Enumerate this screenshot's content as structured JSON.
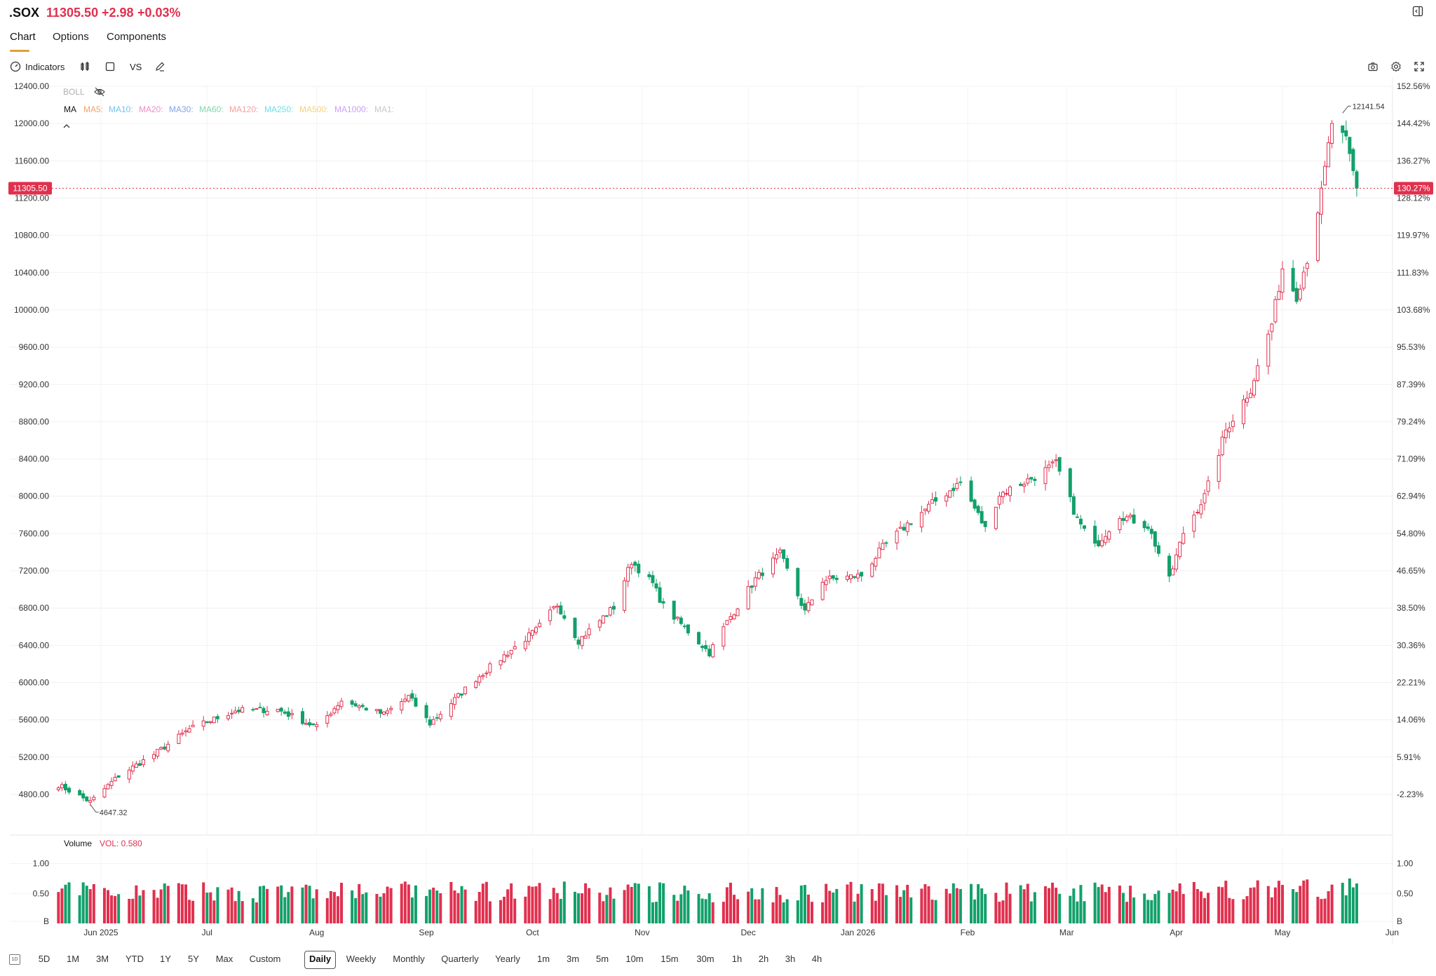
{
  "header": {
    "symbol": ".SOX",
    "price": "11305.50",
    "change": "+2.98",
    "change_pct": "+0.03%"
  },
  "tabs": [
    {
      "label": "Chart",
      "active": true
    },
    {
      "label": "Options"
    },
    {
      "label": "Components"
    }
  ],
  "toolbar": {
    "indicators_label": "Indicators",
    "vs_label": "VS"
  },
  "indicators": {
    "boll_label": "BOLL",
    "ma_label": "MA",
    "ma_items": [
      {
        "label": "MA5:",
        "color": "#f5a26b"
      },
      {
        "label": "MA10:",
        "color": "#6ec6f0"
      },
      {
        "label": "MA20:",
        "color": "#f08cc8"
      },
      {
        "label": "MA30:",
        "color": "#7fa6e8"
      },
      {
        "label": "MA60:",
        "color": "#7fd6b0"
      },
      {
        "label": "MA120:",
        "color": "#f5a0a0"
      },
      {
        "label": "MA250:",
        "color": "#6fe0e6"
      },
      {
        "label": "MA500:",
        "color": "#f3d27a"
      },
      {
        "label": "MA1000:",
        "color": "#c7a3f0"
      },
      {
        "label": "MA1:",
        "color": "#c8c8c8"
      }
    ],
    "volume_label": "Volume",
    "vol_value": "VOL: 0.580"
  },
  "colors": {
    "up": "#e0304e",
    "down": "#12a06a",
    "grid": "#f0f0f0",
    "axis_text": "#333333"
  },
  "chart_data": {
    "type": "candlestick",
    "y_ticks": [
      "12400.00",
      "12000.00",
      "11600.00",
      "11200.00",
      "10800.00",
      "10400.00",
      "10000.00",
      "9600.00",
      "9200.00",
      "8800.00",
      "8400.00",
      "8000.00",
      "7600.00",
      "7200.00",
      "6800.00",
      "6400.00",
      "6000.00",
      "5600.00",
      "5200.00",
      "4800.00"
    ],
    "pct_ticks": [
      "152.56%",
      "144.42%",
      "136.27%",
      "128.12%",
      "119.97%",
      "111.83%",
      "103.68%",
      "95.53%",
      "87.39%",
      "79.24%",
      "71.09%",
      "62.94%",
      "54.80%",
      "46.65%",
      "38.50%",
      "30.36%",
      "22.21%",
      "14.06%",
      "5.91%",
      "-2.23%"
    ],
    "ylim": [
      4800,
      12400
    ],
    "x_ticks": [
      "Jun 2025",
      "Jul",
      "Aug",
      "Sep",
      "Oct",
      "Nov",
      "Dec",
      "Jan 2026",
      "Feb",
      "Mar",
      "Apr",
      "May",
      "Jun"
    ],
    "last_price": "11305.50",
    "last_pct": "130.27%",
    "high_label": "12141.54",
    "low_label": "4647.32",
    "vol_ticks": [
      "1.00",
      "0.50",
      "B"
    ],
    "vol_ylim": [
      0,
      1.1
    ],
    "anchors": [
      [
        "2025-05-20",
        4900
      ],
      [
        "2025-05-29",
        4720
      ],
      [
        "2025-06-06",
        5000
      ],
      [
        "2025-06-16",
        5230
      ],
      [
        "2025-06-26",
        5500
      ],
      [
        "2025-07-09",
        5700
      ],
      [
        "2025-07-21",
        5710
      ],
      [
        "2025-08-01",
        5520
      ],
      [
        "2025-08-08",
        5810
      ],
      [
        "2025-08-20",
        5660
      ],
      [
        "2025-08-27",
        5850
      ],
      [
        "2025-09-02",
        5560
      ],
      [
        "2025-09-15",
        6040
      ],
      [
        "2025-09-24",
        6320
      ],
      [
        "2025-10-02",
        6560
      ],
      [
        "2025-10-08",
        6840
      ],
      [
        "2025-10-14",
        6450
      ],
      [
        "2025-10-24",
        6810
      ],
      [
        "2025-10-29",
        7300
      ],
      [
        "2025-11-04",
        7060
      ],
      [
        "2025-11-07",
        6820
      ],
      [
        "2025-11-20",
        6320
      ],
      [
        "2025-11-25",
        6650
      ],
      [
        "2025-12-03",
        7110
      ],
      [
        "2025-12-10",
        7380
      ],
      [
        "2025-12-17",
        6760
      ],
      [
        "2025-12-22",
        7100
      ],
      [
        "2026-01-02",
        7150
      ],
      [
        "2026-01-08",
        7450
      ],
      [
        "2026-01-15",
        7700
      ],
      [
        "2026-01-22",
        7920
      ],
      [
        "2026-01-30",
        8150
      ],
      [
        "2026-02-04",
        7800
      ],
      [
        "2026-02-06",
        7650
      ],
      [
        "2026-02-10",
        8020
      ],
      [
        "2026-02-20",
        8210
      ],
      [
        "2026-02-26",
        8350
      ],
      [
        "2026-03-04",
        7750
      ],
      [
        "2026-03-09",
        7460
      ],
      [
        "2026-03-16",
        7800
      ],
      [
        "2026-03-24",
        7680
      ],
      [
        "2026-03-30",
        7100
      ],
      [
        "2026-04-03",
        7610
      ],
      [
        "2026-04-09",
        8000
      ],
      [
        "2026-04-15",
        8710
      ],
      [
        "2026-04-22",
        9150
      ],
      [
        "2026-04-28",
        9850
      ],
      [
        "2026-05-01",
        10450
      ],
      [
        "2026-05-05",
        10150
      ],
      [
        "2026-05-08",
        10550
      ],
      [
        "2026-05-12",
        11250
      ],
      [
        "2026-05-15",
        12010
      ],
      [
        "2026-05-19",
        11800
      ],
      [
        "2026-05-22",
        11305.5
      ]
    ]
  }
}
